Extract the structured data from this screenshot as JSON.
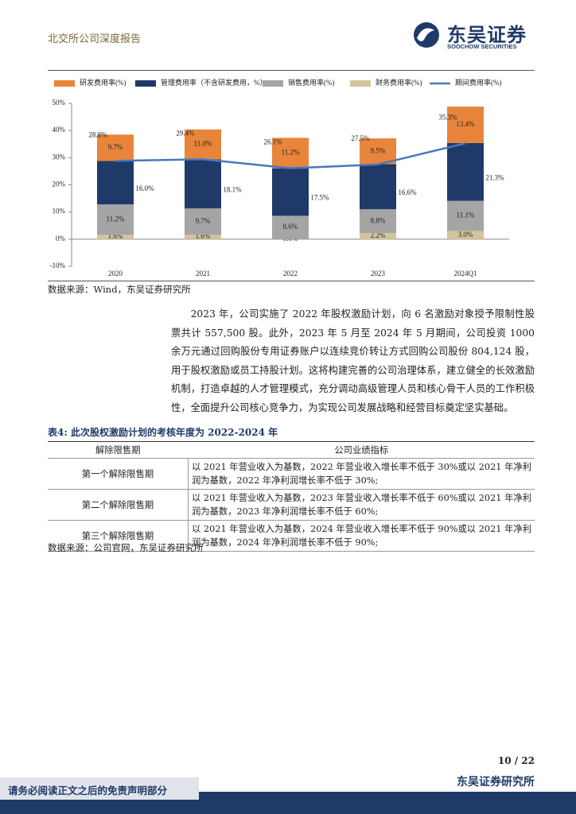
{
  "header": {
    "title": "北交所公司深度报告",
    "logo_cn": "东吴证券",
    "logo_en": "SOOCHOW SECURITIES"
  },
  "chart_data": {
    "type": "bar",
    "stacked": true,
    "categories": [
      "2020",
      "2021",
      "2022",
      "2023",
      "2024Q1"
    ],
    "series": [
      {
        "name": "研发费用率(%)",
        "color": "#E8853B",
        "values": [
          9.7,
          11.0,
          11.2,
          9.5,
          13.4
        ],
        "value_labels": [
          "9.7%",
          "11.0%",
          "11.2%",
          "9.5%",
          "13.4%"
        ]
      },
      {
        "name": "管理费用率（不含研发费用，%）",
        "color": "#1F3A68",
        "values": [
          16.0,
          18.1,
          17.5,
          16.6,
          21.3
        ],
        "value_labels": [
          "16.0%",
          "18.1%",
          "17.5%",
          "16.6%",
          "21.3%"
        ]
      },
      {
        "name": "销售费用率(%)",
        "color": "#A5A5A5",
        "values": [
          11.2,
          9.7,
          8.6,
          8.8,
          11.1
        ],
        "value_labels": [
          "11.2%",
          "9.7%",
          "8.6%",
          "8.8%",
          "11.1%"
        ]
      },
      {
        "name": "财务费用率(%)",
        "color": "#D4C49A",
        "values": [
          1.6,
          1.6,
          0.0,
          2.2,
          3.0
        ],
        "value_labels": [
          "1.6%",
          "1.6%",
          "0.0%",
          "2.2%",
          "3.0%"
        ]
      },
      {
        "name": "期间费用率(%)",
        "type": "line",
        "color": "#4A76C0",
        "values": [
          28.8,
          29.4,
          26.1,
          27.5,
          35.3
        ],
        "value_labels": [
          "28.8%",
          "29.4%",
          "26.1%",
          "27.5%",
          "35.3%"
        ]
      }
    ],
    "ylim": [
      -10,
      50
    ],
    "yticks": [
      {
        "value": -10,
        "label": "-10%"
      },
      {
        "value": 0,
        "label": "0%"
      },
      {
        "value": 10,
        "label": "10%"
      },
      {
        "value": 20,
        "label": "20%"
      },
      {
        "value": 30,
        "label": "30%"
      },
      {
        "value": 40,
        "label": "40%"
      },
      {
        "value": 50,
        "label": "50%"
      }
    ],
    "legend": "top"
  },
  "chart_source": "数据来源：Wind，东吴证券研究所",
  "body": "2023 年，公司实施了 2022 年股权激励计划，向 6 名激励对象授予限制性股票共计 557,500 股。此外，2023 年 5 月至 2024 年 5 月期间，公司投资 1000 余万元通过回购股份专用证券账户以连续竞价转让方式回购公司股份 804,124 股，用于股权激励或员工持股计划。这将构建完善的公司治理体系，建立健全的长效激励机制，打造卓越的人才管理模式，充分调动高级管理人员和核心骨干人员的工作积极性，全面提升公司核心竞争力，为实现公司发展战略和经营目标奠定坚实基础。",
  "table": {
    "caption": "表4: 此次股权激励计划的考核年度为 2022-2024 年",
    "header": [
      "解除限售期",
      "公司业绩指标"
    ],
    "rows": [
      [
        "第一个解除限售期",
        "以 2021 年营业收入为基数，2022 年营业收入增长率不低于 30%或以 2021 年净利润为基数，2022 年净利润增长率不低于 30%;"
      ],
      [
        "第二个解除限售期",
        "以 2021 年营业收入为基数，2023 年营业收入增长率不低于 60%或以 2021 年净利润为基数，2023 年净利润增长率不低于 60%;"
      ],
      [
        "第三个解除限售期",
        "以 2021 年营业收入为基数，2024 年营业收入增长率不低于 90%或以 2021 年净利润为基数，2024 年净利润增长率不低于 90%;"
      ]
    ],
    "source": "数据来源：公司官网，东吴证券研究所"
  },
  "footer": {
    "page": "10 / 22",
    "org": "东吴证券研究所",
    "disclaimer": "请务必阅读正文之后的免责声明部分"
  }
}
